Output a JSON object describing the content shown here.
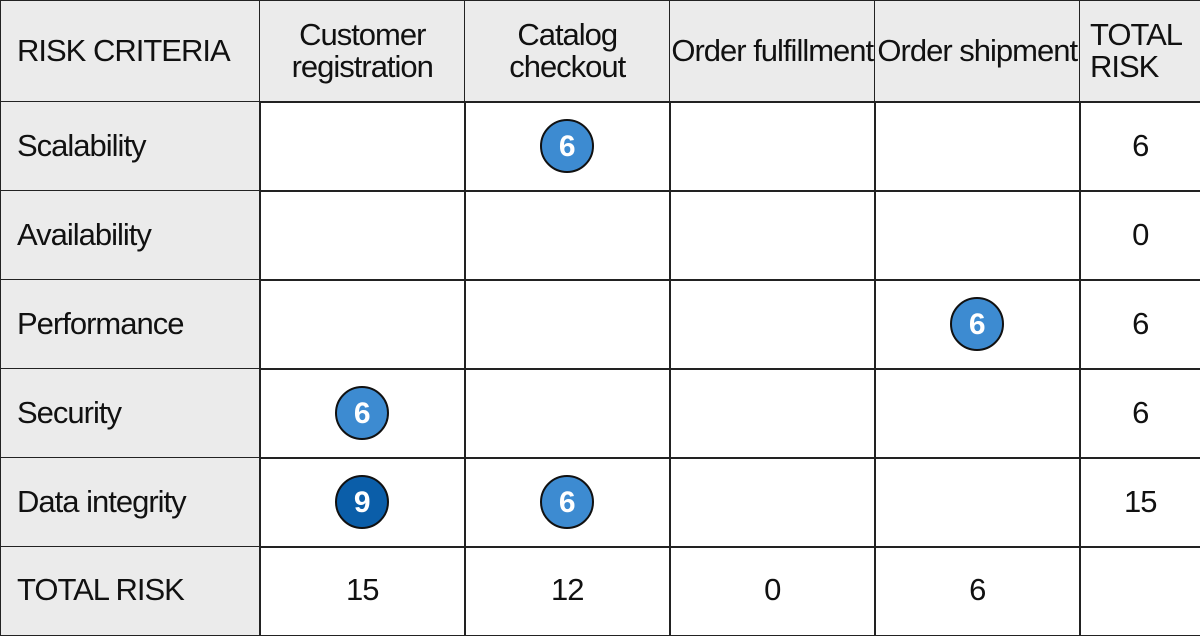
{
  "table": {
    "header": [
      "RISK CRITERIA",
      "Customer registration",
      "Catalog checkout",
      "Order fulfillment",
      "Order shipment",
      "TOTAL RISK"
    ],
    "rows": [
      {
        "criterion": "Scalability",
        "cells": [
          null,
          6,
          null,
          null
        ],
        "total": 6
      },
      {
        "criterion": "Availability",
        "cells": [
          null,
          null,
          null,
          null
        ],
        "total": 0
      },
      {
        "criterion": "Performance",
        "cells": [
          null,
          null,
          null,
          6
        ],
        "total": 6
      },
      {
        "criterion": "Security",
        "cells": [
          6,
          null,
          null,
          null
        ],
        "total": 6
      },
      {
        "criterion": "Data integrity",
        "cells": [
          9,
          6,
          null,
          null
        ],
        "total": 15
      }
    ],
    "total_row": {
      "label": "TOTAL RISK",
      "cells": [
        15,
        12,
        0,
        6
      ]
    },
    "rating_colors": {
      "6": "#3d8bd1",
      "9": "#0b5ea9"
    }
  }
}
